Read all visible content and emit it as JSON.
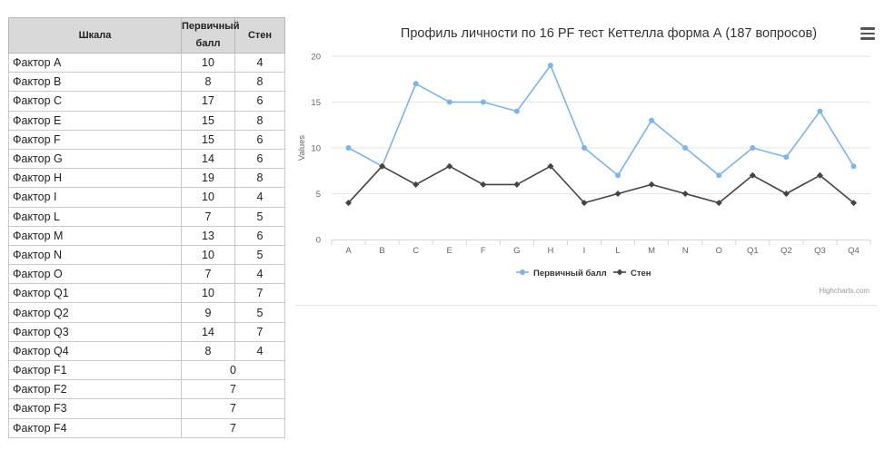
{
  "table": {
    "headers": {
      "scale": "Шкала",
      "primary": "Первичный балл",
      "sten": "Стен"
    },
    "rows": [
      {
        "name": "Фактор A",
        "primary": "10",
        "sten": "4"
      },
      {
        "name": "Фактор B",
        "primary": "8",
        "sten": "8"
      },
      {
        "name": "Фактор C",
        "primary": "17",
        "sten": "6"
      },
      {
        "name": "Фактор E",
        "primary": "15",
        "sten": "8"
      },
      {
        "name": "Фактор F",
        "primary": "15",
        "sten": "6"
      },
      {
        "name": "Фактор G",
        "primary": "14",
        "sten": "6"
      },
      {
        "name": "Фактор H",
        "primary": "19",
        "sten": "8"
      },
      {
        "name": "Фактор I",
        "primary": "10",
        "sten": "4"
      },
      {
        "name": "Фактор L",
        "primary": "7",
        "sten": "5"
      },
      {
        "name": "Фактор M",
        "primary": "13",
        "sten": "6"
      },
      {
        "name": "Фактор N",
        "primary": "10",
        "sten": "5"
      },
      {
        "name": "Фактор O",
        "primary": "7",
        "sten": "4"
      },
      {
        "name": "Фактор Q1",
        "primary": "10",
        "sten": "7"
      },
      {
        "name": "Фактор Q2",
        "primary": "9",
        "sten": "5"
      },
      {
        "name": "Фактор Q3",
        "primary": "14",
        "sten": "7"
      },
      {
        "name": "Фактор Q4",
        "primary": "8",
        "sten": "4"
      }
    ],
    "extra_rows": [
      {
        "name": "Фактор F1",
        "value": "0"
      },
      {
        "name": "Фактор F2",
        "value": "7"
      },
      {
        "name": "Фактор F3",
        "value": "7"
      },
      {
        "name": "Фактор F4",
        "value": "7"
      }
    ]
  },
  "chart_data": {
    "type": "line",
    "title": "Профиль личности по 16 PF тест Кеттелла форма А (187 вопросов)",
    "ylabel": "Values",
    "xlabel": "",
    "ylim": [
      0,
      20
    ],
    "yticks": [
      0,
      5,
      10,
      15,
      20
    ],
    "grid": true,
    "legend": "bottom-center",
    "credit": "Highcharts.com",
    "categories": [
      "A",
      "B",
      "C",
      "E",
      "F",
      "G",
      "H",
      "I",
      "L",
      "M",
      "N",
      "O",
      "Q1",
      "Q2",
      "Q3",
      "Q4"
    ],
    "series": [
      {
        "name": "Первичный балл",
        "color": "#7cb5ec",
        "marker": "circle",
        "values": [
          10,
          8,
          17,
          15,
          15,
          14,
          19,
          10,
          7,
          13,
          10,
          7,
          10,
          9,
          14,
          8
        ]
      },
      {
        "name": "Стен",
        "color": "#434348",
        "marker": "diamond",
        "values": [
          4,
          8,
          6,
          8,
          6,
          6,
          8,
          4,
          5,
          6,
          5,
          4,
          7,
          5,
          7,
          4
        ]
      }
    ]
  },
  "icons": {
    "menu": "hamburger-menu-icon"
  }
}
